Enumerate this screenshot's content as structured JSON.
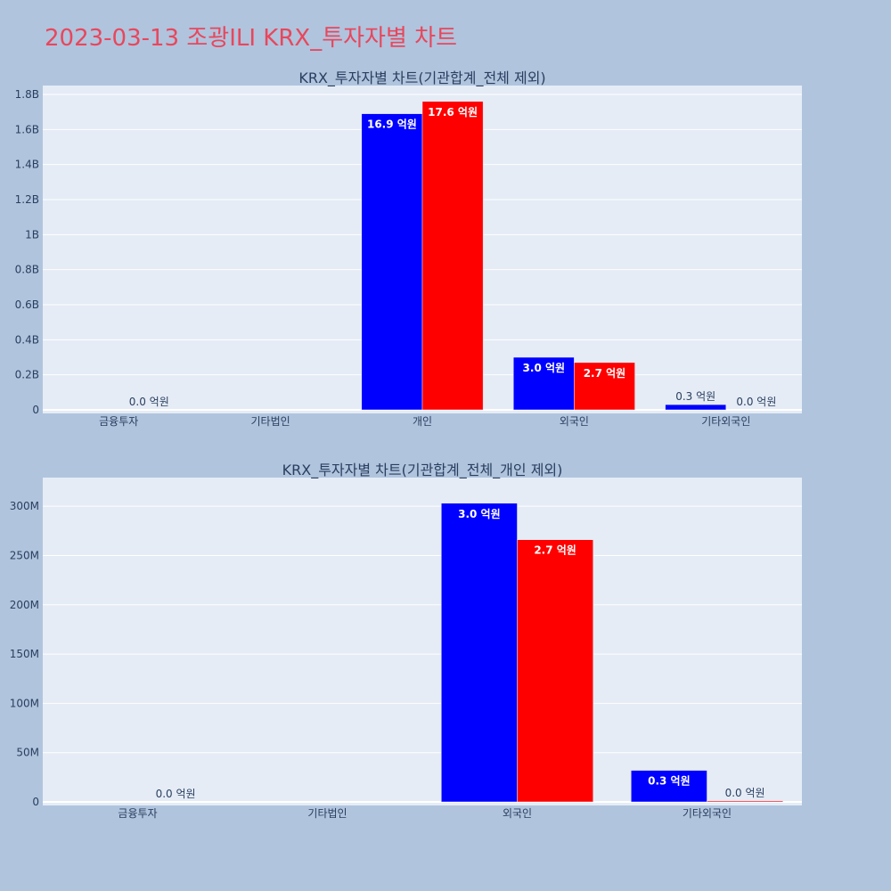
{
  "page_title": "2023-03-13 조광ILI KRX_투자자별 차트",
  "colors": {
    "title": "#e8475c",
    "page_bg": "#b0c4de",
    "plot_bg": "#e5ecf6",
    "series_1": "#0000ff",
    "series_2": "#ff0000"
  },
  "chart_data": [
    {
      "type": "bar",
      "title": "KRX_투자자별 차트(기관합계_전체 제외)",
      "categories": [
        "금융투자",
        "기타법인",
        "개인",
        "외국인",
        "기타외국인"
      ],
      "ylim": [
        0,
        1800000000
      ],
      "yticks": [
        0,
        200000000,
        400000000,
        600000000,
        800000000,
        1000000000,
        1200000000,
        1400000000,
        1600000000,
        1800000000
      ],
      "ytick_labels": [
        "0",
        "0.2B",
        "0.4B",
        "0.6B",
        "0.8B",
        "1B",
        "1.2B",
        "1.4B",
        "1.6B",
        "1.8B"
      ],
      "series": [
        {
          "values": [
            0,
            0,
            1690000000,
            300000000,
            30000000
          ],
          "labels": [
            "",
            "",
            "16.9 억원",
            "3.0 억원",
            "0.3 억원"
          ]
        },
        {
          "values": [
            0,
            0,
            1760000000,
            270000000,
            0
          ],
          "labels": [
            "0.0 억원",
            "",
            "17.6 억원",
            "2.7 억원",
            "0.0 억원"
          ]
        }
      ],
      "grid": true
    },
    {
      "type": "bar",
      "title": "KRX_투자자별 차트(기관합계_전체_개인 제외)",
      "categories": [
        "금융투자",
        "기타법인",
        "외국인",
        "기타외국인"
      ],
      "ylim": [
        0,
        320000000
      ],
      "yticks": [
        0,
        50000000,
        100000000,
        150000000,
        200000000,
        250000000,
        300000000
      ],
      "ytick_labels": [
        "0",
        "50M",
        "100M",
        "150M",
        "200M",
        "250M",
        "300M"
      ],
      "series": [
        {
          "values": [
            0,
            0,
            303000000,
            32000000
          ],
          "labels": [
            "",
            "",
            "3.0 억원",
            "0.3 억원"
          ]
        },
        {
          "values": [
            0,
            0,
            266000000,
            1000000
          ],
          "labels": [
            "0.0 억원",
            "",
            "2.7 억원",
            "0.0 억원"
          ]
        }
      ],
      "grid": true
    }
  ]
}
